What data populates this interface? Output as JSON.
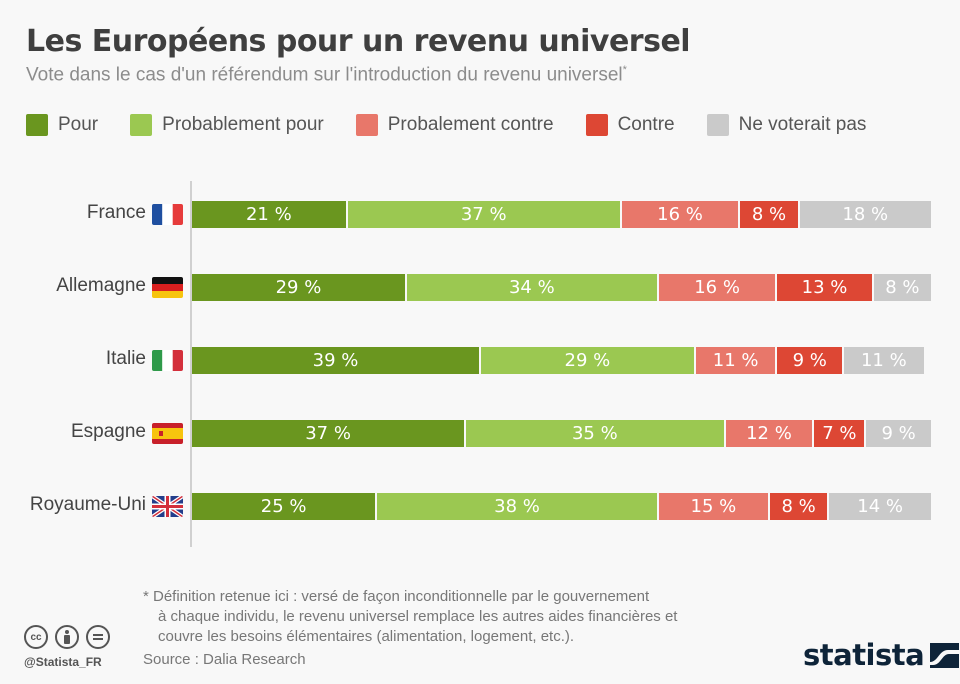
{
  "title": "Les Européens pour un revenu universel",
  "subtitle": "Vote dans le cas d'un référendum sur l'introduction du revenu universel",
  "subtitle_marker": "*",
  "footnote": {
    "line1": "* Définition retenue ici : versé de façon inconditionnelle par le gouvernement",
    "line2": "à chaque individu, le revenu universel remplace les autres aides financières et",
    "line3": "couvre les besoins élémentaires (alimentation, logement, etc.)."
  },
  "source": "Source : Dalia Research",
  "handle": "@Statista_FR",
  "brand": "statista",
  "license_icons": [
    "cc-icon",
    "by-icon",
    "nd-icon"
  ],
  "chart_data": {
    "type": "bar",
    "orientation": "horizontal",
    "stacked": true,
    "title": "Les Européens pour un revenu universel",
    "subtitle": "Vote dans le cas d'un référendum sur l'introduction du revenu universel*",
    "xlabel": "",
    "ylabel": "",
    "xlim": [
      0,
      100
    ],
    "grid": false,
    "legend_position": "top",
    "value_suffix": " %",
    "categories": [
      "France",
      "Allemagne",
      "Italie",
      "Espagne",
      "Royaume-Uni"
    ],
    "flags": [
      "fr",
      "de",
      "it",
      "es",
      "gb"
    ],
    "series": [
      {
        "name": "Pour",
        "color": "#6a961f",
        "values": [
          21,
          29,
          39,
          37,
          25
        ]
      },
      {
        "name": "Probablement pour",
        "color": "#9bc851",
        "values": [
          37,
          34,
          29,
          35,
          38
        ]
      },
      {
        "name": "Probalement contre",
        "color": "#e8776a",
        "values": [
          16,
          16,
          11,
          12,
          15
        ]
      },
      {
        "name": "Contre",
        "color": "#dd4734",
        "values": [
          8,
          13,
          9,
          7,
          8
        ]
      },
      {
        "name": "Ne voterait pas",
        "color": "#cacaca",
        "values": [
          18,
          8,
          11,
          9,
          14
        ]
      }
    ]
  }
}
